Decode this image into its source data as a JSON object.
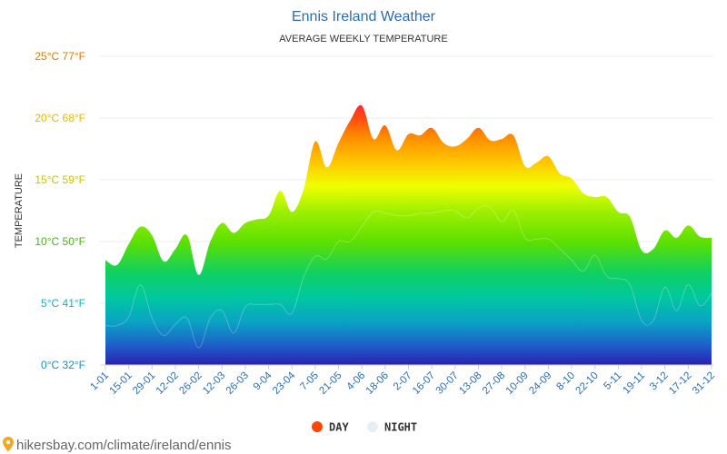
{
  "chart_data": {
    "type": "area",
    "title": "Ennis Ireland Weather",
    "subtitle": "AVERAGE WEEKLY TEMPERATURE",
    "ylabel": "TEMPERATURE",
    "ylim": [
      0,
      25
    ],
    "y_ticks": [
      {
        "value": 0,
        "label": "0°C 32°F",
        "color": "#1a8fc0"
      },
      {
        "value": 5,
        "label": "5°C 41°F",
        "color": "#14b3b3"
      },
      {
        "value": 10,
        "label": "10°C 50°F",
        "color": "#4caf1c"
      },
      {
        "value": 15,
        "label": "15°C 59°F",
        "color": "#c7c400"
      },
      {
        "value": 20,
        "label": "20°C 68°F",
        "color": "#e6b800"
      },
      {
        "value": 25,
        "label": "25°C 77°F",
        "color": "#e07b00"
      }
    ],
    "x_tick_labels": [
      "1-01",
      "15-01",
      "29-01",
      "12-02",
      "26-02",
      "12-03",
      "26-03",
      "9-04",
      "23-04",
      "7-05",
      "21-05",
      "4-06",
      "18-06",
      "2-07",
      "16-07",
      "30-07",
      "13-08",
      "27-08",
      "10-09",
      "24-09",
      "8-10",
      "22-10",
      "5-11",
      "19-11",
      "3-12",
      "17-12",
      "31-12"
    ],
    "grid": true,
    "legend_position": "bottom-center",
    "series": [
      {
        "name": "DAY",
        "color": "#ff4500",
        "values": [
          8.5,
          8.1,
          9.8,
          11.2,
          10.5,
          8.4,
          9.4,
          10.5,
          7.3,
          10.0,
          11.5,
          10.7,
          11.5,
          11.8,
          12.1,
          14.1,
          12.4,
          14.2,
          18.1,
          16.0,
          18.0,
          19.8,
          21.0,
          18.3,
          19.4,
          17.4,
          18.7,
          18.6,
          19.2,
          18.0,
          17.7,
          18.3,
          19.2,
          18.2,
          18.3,
          18.6,
          16.1,
          16.4,
          16.9,
          15.5,
          15.1,
          13.9,
          13.6,
          13.6,
          12.4,
          12.0,
          9.3,
          9.4,
          10.9,
          10.3,
          11.3,
          10.4,
          10.3
        ]
      },
      {
        "name": "NIGHT",
        "color": "#e8eef5",
        "values": [
          3.2,
          3.2,
          3.9,
          6.5,
          3.8,
          2.4,
          3.3,
          3.8,
          1.4,
          3.8,
          4.4,
          2.6,
          4.7,
          4.9,
          4.9,
          4.9,
          4.2,
          7.1,
          8.8,
          8.6,
          10.0,
          10.0,
          11.2,
          12.4,
          12.3,
          12.1,
          12.1,
          12.3,
          12.3,
          12.5,
          12.5,
          11.9,
          12.7,
          12.8,
          11.6,
          12.5,
          10.3,
          10.2,
          10.2,
          9.4,
          8.5,
          7.6,
          8.9,
          7.2,
          7.0,
          6.5,
          3.6,
          3.6,
          6.3,
          4.4,
          6.5,
          4.8,
          5.8
        ]
      }
    ]
  },
  "legend": [
    {
      "label": "DAY",
      "color": "#ff4500"
    },
    {
      "label": "NIGHT",
      "color": "#e8eef5"
    }
  ],
  "footer": {
    "icon": "map-pin-icon",
    "text": "hikersbay.com/climate/ireland/ennis",
    "icon_color": "#f5a623"
  }
}
